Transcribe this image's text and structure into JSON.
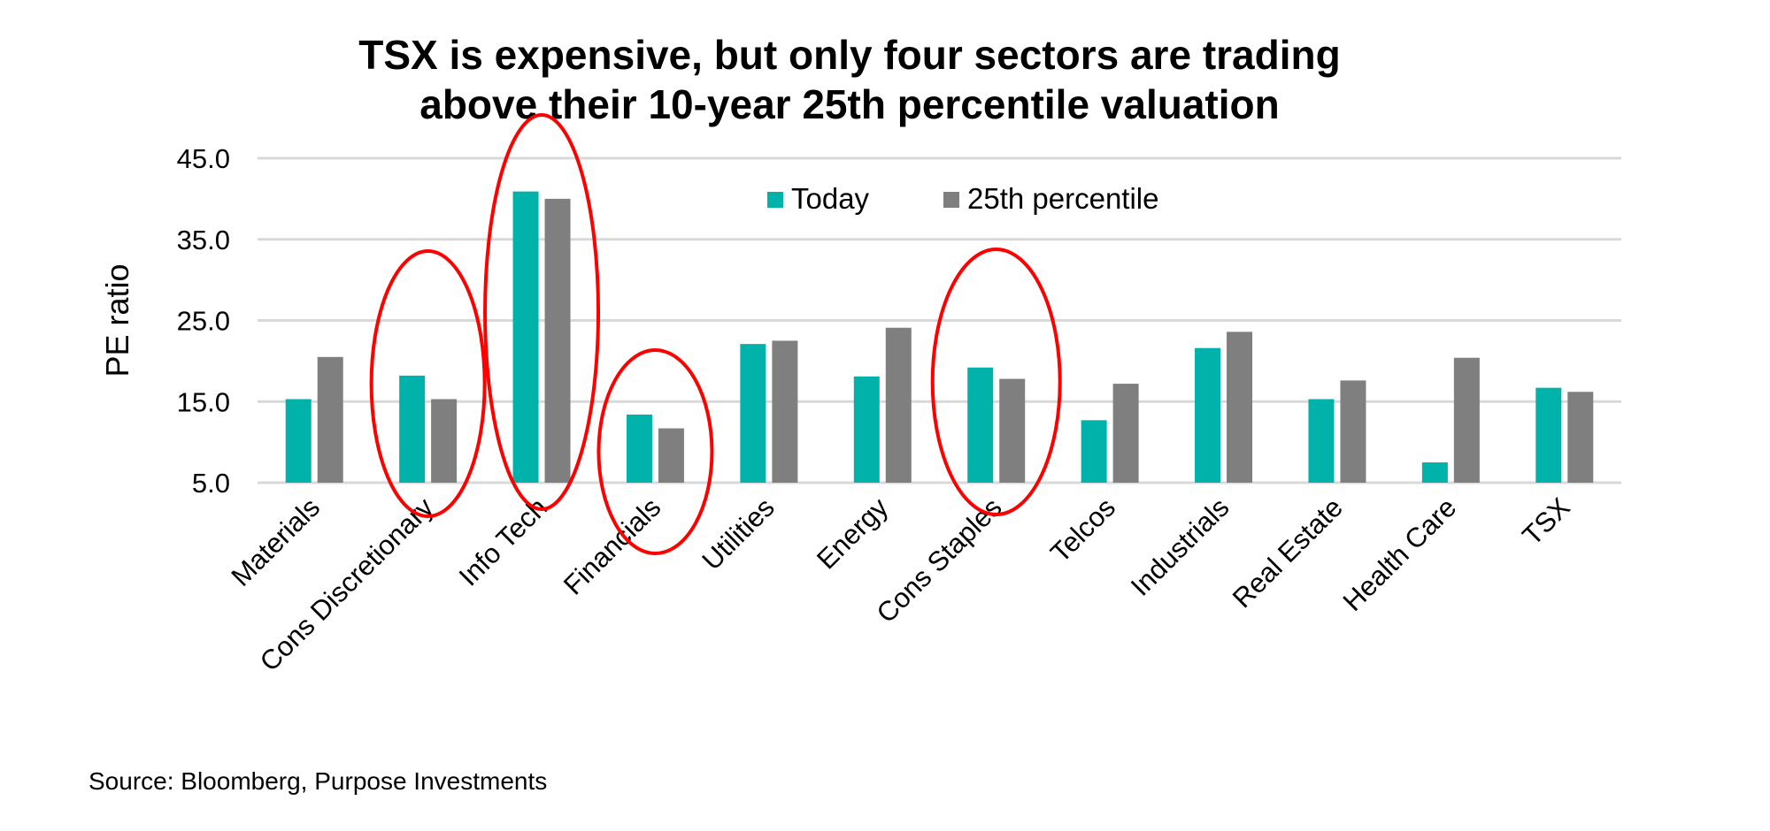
{
  "chart_data": {
    "type": "bar",
    "title_lines": [
      "TSX is expensive, but only four sectors are trading",
      "above their 10-year 25th percentile valuation"
    ],
    "xlabel": "",
    "ylabel": "PE ratio",
    "ylim": [
      5,
      45
    ],
    "yticks": [
      "5.0",
      "15.0",
      "25.0",
      "35.0",
      "45.0"
    ],
    "grid": true,
    "legend_placement": "top-center",
    "categories": [
      "Materials",
      "Cons Discretionary",
      "Info Tech",
      "Financials",
      "Utilities",
      "Energy",
      "Cons Staples",
      "Telcos",
      "Industrials",
      "Real Estate",
      "Health Care",
      "TSX"
    ],
    "series": [
      {
        "name": "Today",
        "color": "#00B2A9",
        "values": [
          15.3,
          18.2,
          40.9,
          13.4,
          22.1,
          18.1,
          19.2,
          12.7,
          21.6,
          15.3,
          7.5,
          16.7
        ]
      },
      {
        "name": "25th percentile",
        "color": "#7F7F7F",
        "values": [
          20.5,
          15.3,
          40.0,
          11.7,
          22.5,
          24.1,
          17.8,
          17.2,
          23.6,
          17.6,
          20.4,
          16.2
        ]
      }
    ],
    "highlighted_categories": [
      "Cons Discretionary",
      "Info Tech",
      "Financials",
      "Cons Staples"
    ],
    "highlight_color": "#FF0000"
  },
  "source": "Source: Bloomberg, Purpose Investments"
}
